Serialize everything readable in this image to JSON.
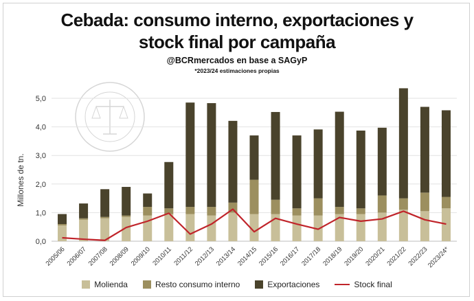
{
  "title_line1": "Cebada: consumo interno, exportaciones y",
  "title_line2": "stock final por campaña",
  "subtitle": "@BCRmercados en base a SAGyP",
  "note": "*2023/24 estimaciones propias",
  "colors": {
    "molienda": "#c8bf99",
    "resto": "#9c8f5f",
    "exportaciones": "#4a432c",
    "stock": "#c0242a"
  },
  "chart_data": {
    "type": "bar",
    "stacked": true,
    "title": "Cebada: consumo interno, exportaciones y stock final por campaña",
    "xlabel": "",
    "ylabel": "Millones de tn.",
    "ylim": [
      0,
      5
    ],
    "yticks": [
      "0,0",
      "1,0",
      "2,0",
      "3,0",
      "4,0",
      "5,0"
    ],
    "grid": true,
    "legend_position": "bottom",
    "categories": [
      "2005/06",
      "2006/07",
      "2007/08",
      "2008/09",
      "2009/10",
      "2010/11",
      "2011/12",
      "2012/13",
      "2013/14",
      "2014/15",
      "2015/16",
      "2016/17",
      "2017/18",
      "2018/19",
      "2019/20",
      "2020/21",
      "2021/22",
      "2022/23",
      "2023/24*"
    ],
    "series": [
      {
        "name": "Molienda",
        "kind": "bar",
        "values": [
          0.55,
          0.75,
          0.8,
          0.85,
          0.9,
          0.95,
          0.95,
          0.9,
          1.0,
          0.95,
          0.95,
          0.9,
          0.9,
          0.95,
          0.95,
          1.0,
          1.1,
          1.05,
          1.15
        ]
      },
      {
        "name": "Resto consumo interno",
        "kind": "bar",
        "values": [
          0.05,
          0.05,
          0.05,
          0.05,
          0.3,
          0.2,
          0.25,
          0.3,
          0.35,
          1.2,
          0.5,
          0.25,
          0.6,
          0.25,
          0.2,
          0.6,
          0.4,
          0.65,
          0.4
        ]
      },
      {
        "name": "Exportaciones",
        "kind": "bar",
        "values": [
          0.35,
          0.52,
          0.97,
          1.0,
          0.47,
          1.62,
          3.65,
          3.63,
          2.86,
          1.55,
          3.07,
          2.55,
          2.41,
          3.33,
          2.72,
          2.37,
          3.85,
          3.0,
          3.03
        ]
      },
      {
        "name": "Stock final",
        "kind": "line",
        "values": [
          0.12,
          0.07,
          0.03,
          0.48,
          0.7,
          0.98,
          0.25,
          0.6,
          1.12,
          0.33,
          0.8,
          0.6,
          0.42,
          0.83,
          0.7,
          0.78,
          1.05,
          0.75,
          0.6
        ]
      }
    ]
  }
}
